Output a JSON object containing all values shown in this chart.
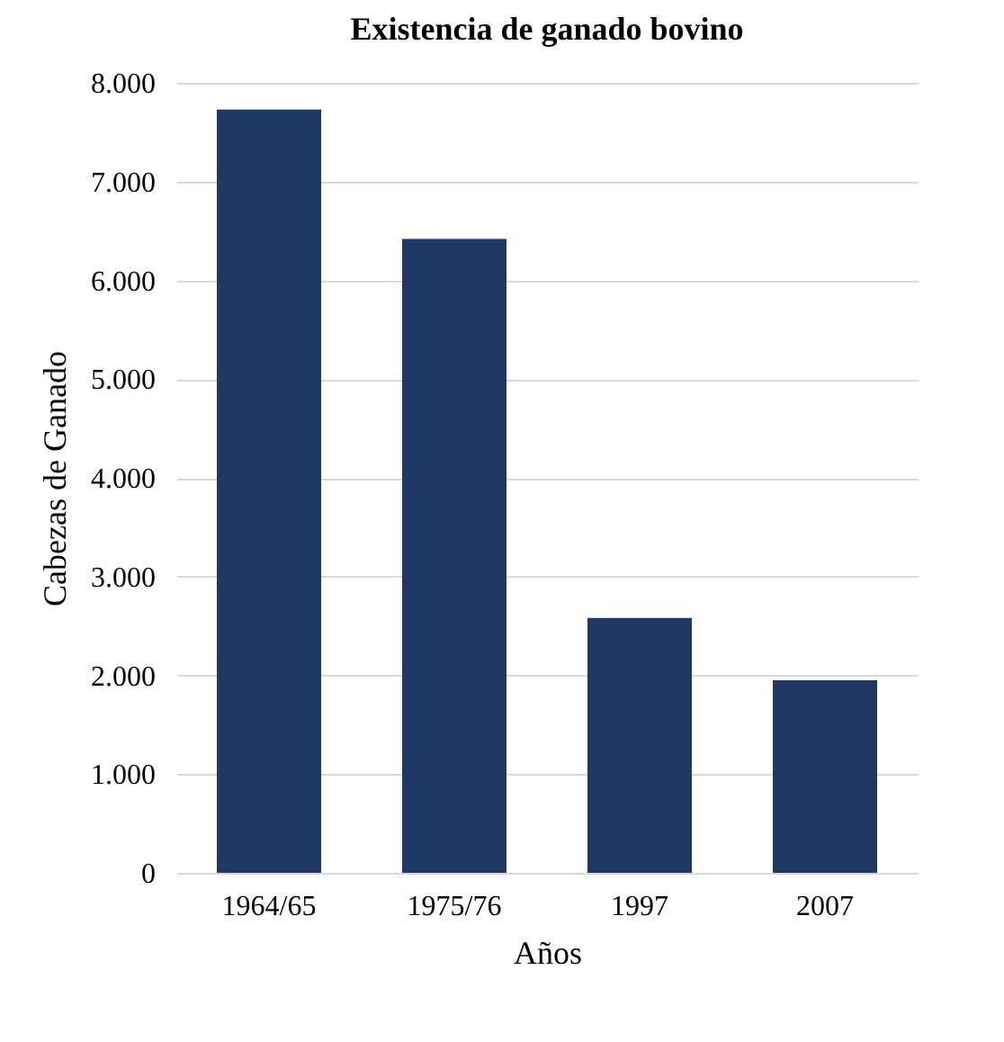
{
  "chart_data": {
    "type": "bar",
    "title": "Existencia de ganado bovino",
    "xlabel": "Años",
    "ylabel": "Cabezas de Ganado",
    "categories": [
      "1964/65",
      "1975/76",
      "1997",
      "2007"
    ],
    "values": [
      7730,
      6420,
      2580,
      1950
    ],
    "color": "#203864",
    "ylim": [
      0,
      8000
    ],
    "yticks": [
      0,
      {
        "value": 1000,
        "label": "1.000"
      },
      {
        "value": 2000,
        "label": "2.000"
      },
      {
        "value": 3000,
        "label": "3.000"
      },
      {
        "value": 4000,
        "label": "4.000"
      },
      {
        "value": 5000,
        "label": "5.000"
      },
      {
        "value": 6000,
        "label": "6.000"
      },
      {
        "value": 7000,
        "label": "7.000"
      },
      {
        "value": 8000,
        "label": "8.000"
      }
    ],
    "grid": "y"
  }
}
